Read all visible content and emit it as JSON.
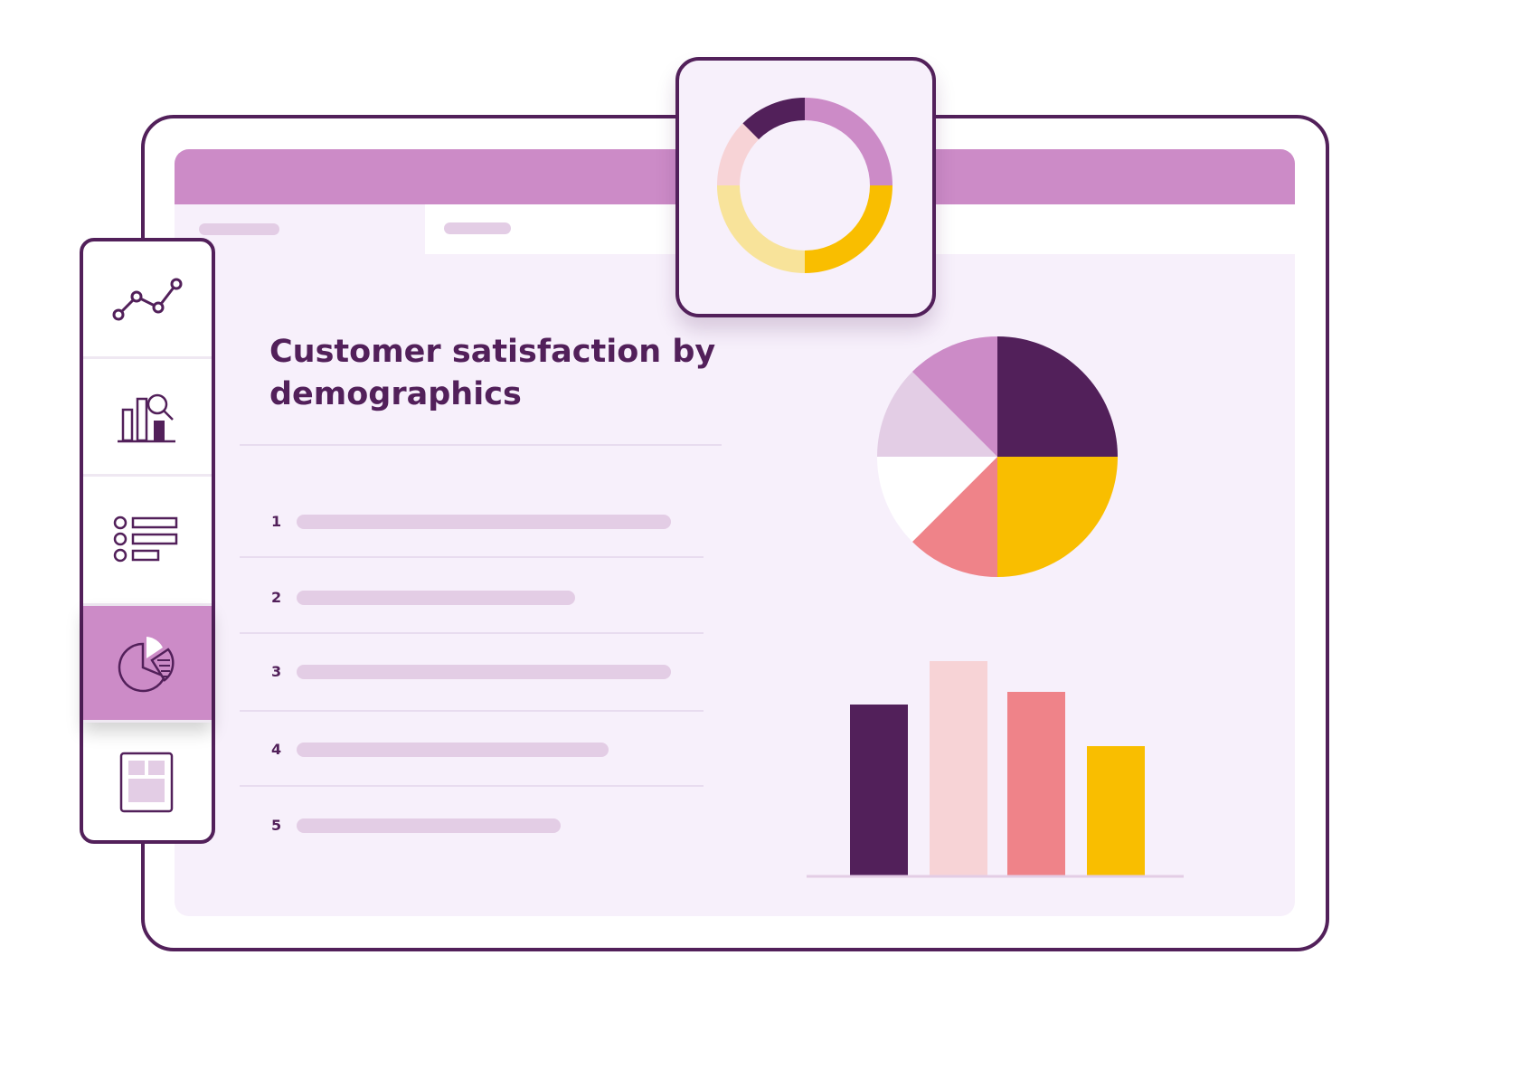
{
  "title": "Customer satisfaction by demographics",
  "list": [
    {
      "n": "1",
      "fill": 1.0
    },
    {
      "n": "2",
      "fill": 0.745
    },
    {
      "n": "3",
      "fill": 1.0
    },
    {
      "n": "4",
      "fill": 0.833
    },
    {
      "n": "5",
      "fill": 0.705
    }
  ],
  "sidebar": {
    "items": [
      {
        "icon": "line-chart-icon"
      },
      {
        "icon": "bar-chart-search-icon"
      },
      {
        "icon": "list-icon"
      },
      {
        "icon": "pie-chart-icon",
        "active": true
      },
      {
        "icon": "layout-icon"
      }
    ]
  },
  "colors": {
    "dark": "#52205a",
    "lilac": "#cc8bc7",
    "light_lilac": "#e3cde5",
    "yellow": "#f9be00",
    "light_yellow": "#f8e39a",
    "pink": "#f7d3d6",
    "coral": "#ef8389",
    "bg": "#f7f0fb"
  },
  "chart_data": [
    {
      "type": "pie",
      "subtype": "donut",
      "values": [
        25,
        25,
        25,
        12.5,
        12.5
      ],
      "colors": [
        "#cc8bc7",
        "#f9be00",
        "#f8e39a",
        "#f7d3d6",
        "#52205a"
      ]
    },
    {
      "type": "pie",
      "values": [
        25,
        25,
        12.5,
        12.5,
        12.5,
        12.5
      ],
      "colors": [
        "#52205a",
        "#f9be00",
        "#ef8389",
        "#ffffff",
        "#e3cde5",
        "#cc8bc7"
      ]
    },
    {
      "type": "bar",
      "values": [
        189,
        237,
        203,
        143
      ],
      "colors": [
        "#52205a",
        "#f7d3d6",
        "#ef8389",
        "#f9be00"
      ]
    }
  ]
}
